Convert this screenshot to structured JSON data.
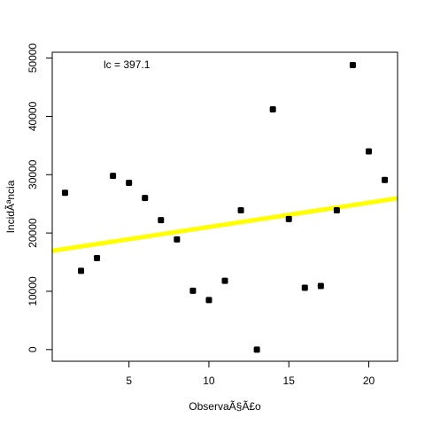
{
  "chart_data": {
    "type": "scatter",
    "xlabel": "ObservaÃ§Ã£o",
    "ylabel": "IncidÃªncia",
    "annotation": "lc = 397.1",
    "xlim": [
      0.2,
      21.8
    ],
    "ylim": [
      -2000,
      51000
    ],
    "xticks": [
      5,
      10,
      15,
      20
    ],
    "yticks": [
      0,
      10000,
      20000,
      30000,
      40000,
      50000
    ],
    "grid": false,
    "points": [
      {
        "x": 1,
        "y": 26900
      },
      {
        "x": 2,
        "y": 13500
      },
      {
        "x": 3,
        "y": 15700
      },
      {
        "x": 4,
        "y": 29800
      },
      {
        "x": 5,
        "y": 28600
      },
      {
        "x": 6,
        "y": 26000
      },
      {
        "x": 7,
        "y": 22200
      },
      {
        "x": 8,
        "y": 18900
      },
      {
        "x": 9,
        "y": 10100
      },
      {
        "x": 10,
        "y": 8500
      },
      {
        "x": 11,
        "y": 11800
      },
      {
        "x": 12,
        "y": 23900
      },
      {
        "x": 13,
        "y": 0
      },
      {
        "x": 14,
        "y": 41200
      },
      {
        "x": 15,
        "y": 22400
      },
      {
        "x": 16,
        "y": 10600
      },
      {
        "x": 17,
        "y": 10900
      },
      {
        "x": 18,
        "y": 23900
      },
      {
        "x": 19,
        "y": 48800
      },
      {
        "x": 20,
        "y": 34000
      },
      {
        "x": 21,
        "y": 29100
      }
    ],
    "trend_line": {
      "color": "#ffff00",
      "intercept": 16850,
      "slope": 417.1
    },
    "point_color": "#000000"
  }
}
